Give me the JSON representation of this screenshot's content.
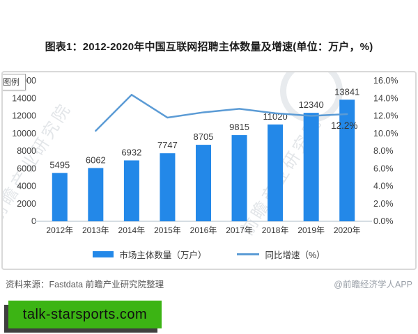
{
  "page": {
    "title": "图表1：2012-2020年中国互联网招聘主体数量及增速(单位：万户，%)",
    "tooltip_label": "图例",
    "watermark_text": "前瞻产业研究院",
    "badge_text": "talk-starsports.com",
    "footer": {
      "source": "资料来源：Fastdata 前瞻产业研究院整理",
      "credit": "@前瞻经济学人APP"
    }
  },
  "colors": {
    "bar": "#2388e8",
    "line": "#5b9bd5",
    "axis_line": "#c9d2da",
    "tick_text": "#3f3f3f",
    "data_label": "#3a3a3a",
    "badge_green": "#3cb414",
    "badge_shadow": "#3f3f3f"
  },
  "chart_data": {
    "type": "bar+line",
    "title": "图表1：2012-2020年中国互联网招聘主体数量及增速(单位：万户，%)",
    "categories": [
      "2012年",
      "2013年",
      "2014年",
      "2015年",
      "2016年",
      "2017年",
      "2018年",
      "2019年",
      "2020年"
    ],
    "series": [
      {
        "name": "市场主体数量（万户）",
        "type": "bar",
        "axis": "left",
        "values": [
          5495,
          6062,
          6932,
          7747,
          8705,
          9815,
          11020,
          12340,
          13841
        ]
      },
      {
        "name": "同比增速（%）",
        "type": "line",
        "axis": "right",
        "values": [
          null,
          10.3,
          14.4,
          11.8,
          12.4,
          12.8,
          12.3,
          12.0,
          12.2
        ]
      }
    ],
    "annotations": [
      {
        "series": 1,
        "index": 8,
        "text": "12.2%"
      }
    ],
    "left_axis": {
      "min": 0,
      "max": 16000,
      "step": 2000
    },
    "right_axis": {
      "min": 0,
      "max": 16,
      "step": 2,
      "suffix": "%"
    },
    "legend_position": "bottom",
    "grid": false,
    "bar_labels_visible": true
  }
}
